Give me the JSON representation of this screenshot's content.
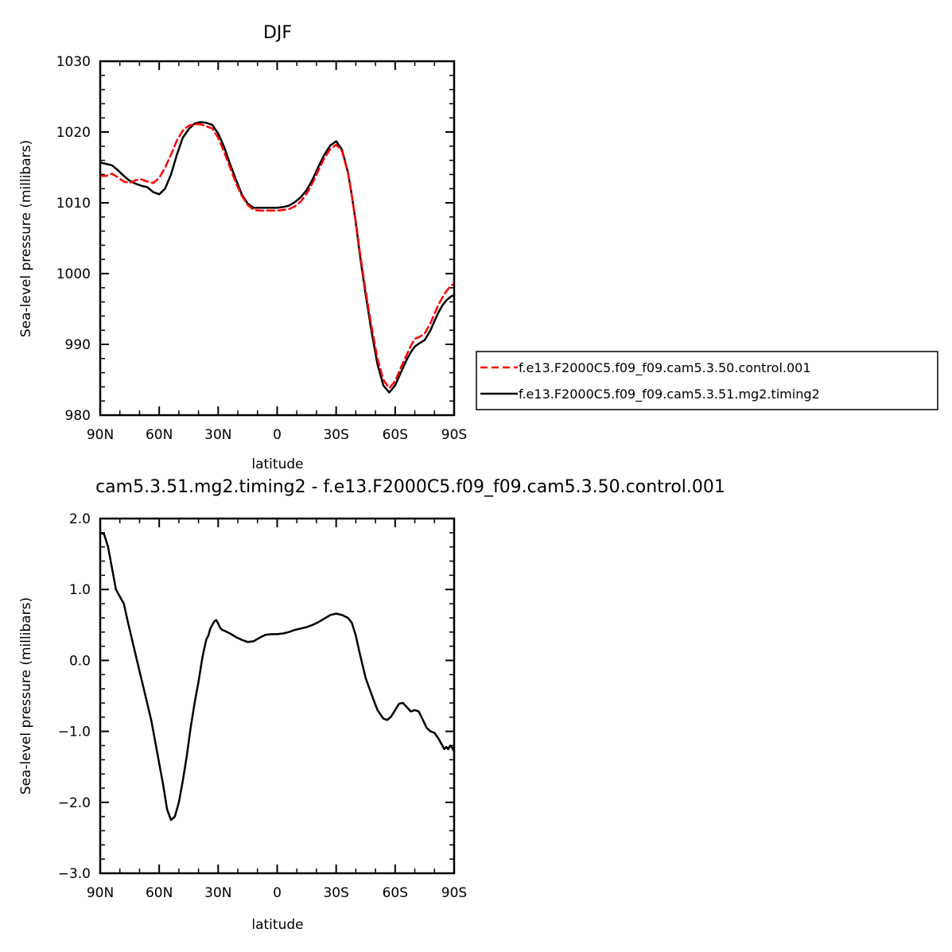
{
  "chart_data": [
    {
      "type": "line",
      "title": "DJF",
      "xlabel": "latitude",
      "ylabel": "Sea-level pressure (millibars)",
      "xlim": [
        90,
        -90
      ],
      "ylim": [
        980,
        1030
      ],
      "xticks": [
        90,
        60,
        30,
        0,
        -30,
        -60,
        -90
      ],
      "xtick_labels": [
        "90N",
        "60N",
        "30N",
        "0",
        "30S",
        "60S",
        "90S"
      ],
      "yticks": [
        980,
        990,
        1000,
        1010,
        1020,
        1030
      ],
      "ytick_labels": [
        "980",
        "990",
        "1000",
        "1010",
        "1020",
        "1030"
      ],
      "grid": false,
      "legend_position": "right",
      "series": [
        {
          "name": "f.e13.F2000C5.f09_f09.cam5.3.50.control.001",
          "color": "#ff0000",
          "style": "dashed",
          "x": [
            90,
            87,
            84,
            81,
            78,
            75,
            72,
            69,
            66,
            63,
            60,
            57,
            54,
            51,
            48,
            45,
            42,
            39,
            36,
            33,
            30,
            27,
            24,
            21,
            18,
            15,
            12,
            9,
            6,
            3,
            0,
            -3,
            -6,
            -9,
            -12,
            -15,
            -18,
            -21,
            -24,
            -27,
            -30,
            -33,
            -36,
            -38,
            -40,
            -42,
            -45,
            -48,
            -51,
            -54,
            -57,
            -60,
            -63,
            -66,
            -68,
            -70,
            -72,
            -75,
            -78,
            -80,
            -82,
            -84,
            -86,
            -88,
            -90
          ],
          "y": [
            1013.8,
            1013.8,
            1014.1,
            1013.6,
            1013.0,
            1012.8,
            1013.2,
            1013.3,
            1013.0,
            1012.8,
            1013.5,
            1015.0,
            1016.8,
            1018.8,
            1020.2,
            1020.9,
            1021.1,
            1021.1,
            1020.8,
            1020.5,
            1019.2,
            1017.2,
            1015.0,
            1012.8,
            1011.0,
            1009.7,
            1009.0,
            1008.9,
            1008.9,
            1008.9,
            1008.9,
            1009.0,
            1009.1,
            1009.5,
            1010.2,
            1011.3,
            1012.8,
            1014.6,
            1016.3,
            1017.6,
            1018.2,
            1017.3,
            1014.2,
            1011.0,
            1007.4,
            1003.2,
            997.5,
            992.5,
            988.0,
            985.0,
            983.8,
            984.8,
            986.8,
            988.6,
            989.8,
            990.8,
            991.0,
            991.5,
            993.0,
            994.3,
            995.6,
            996.6,
            997.5,
            998.2,
            998.6
          ]
        },
        {
          "name": "f.e13.F2000C5.f09_f09.cam5.3.51.mg2.timing2",
          "color": "#000000",
          "style": "solid",
          "x": [
            90,
            87,
            84,
            81,
            78,
            75,
            72,
            69,
            66,
            63,
            60,
            57,
            54,
            51,
            48,
            45,
            42,
            39,
            36,
            33,
            30,
            27,
            24,
            21,
            18,
            15,
            12,
            9,
            6,
            3,
            0,
            -3,
            -6,
            -9,
            -12,
            -15,
            -18,
            -21,
            -24,
            -27,
            -30,
            -33,
            -36,
            -38,
            -40,
            -42,
            -45,
            -48,
            -51,
            -54,
            -57,
            -60,
            -63,
            -66,
            -68,
            -70,
            -72,
            -75,
            -78,
            -80,
            -82,
            -84,
            -86,
            -88,
            -90
          ],
          "y": [
            1015.7,
            1015.5,
            1015.3,
            1014.6,
            1013.8,
            1013.1,
            1012.7,
            1012.4,
            1012.2,
            1011.5,
            1011.2,
            1012.0,
            1014.0,
            1016.8,
            1019.2,
            1020.4,
            1021.2,
            1021.4,
            1021.3,
            1021.0,
            1019.8,
            1017.9,
            1015.5,
            1013.3,
            1011.2,
            1009.9,
            1009.3,
            1009.3,
            1009.3,
            1009.3,
            1009.3,
            1009.4,
            1009.6,
            1010.1,
            1010.8,
            1011.8,
            1013.3,
            1015.1,
            1016.8,
            1018.1,
            1018.7,
            1017.5,
            1014.3,
            1011.0,
            1007.2,
            1002.8,
            997.0,
            991.8,
            987.2,
            984.2,
            983.2,
            984.2,
            986.1,
            987.9,
            988.9,
            989.7,
            990.1,
            990.6,
            992.0,
            993.3,
            994.5,
            995.5,
            996.2,
            996.7,
            997.0
          ]
        }
      ]
    },
    {
      "type": "line",
      "title": "cam5.3.51.mg2.timing2 - f.e13.F2000C5.f09_f09.cam5.3.50.control.001",
      "xlabel": "latitude",
      "ylabel": "Sea-level pressure (millibars)",
      "xlim": [
        90,
        -90
      ],
      "ylim": [
        -3.0,
        2.0
      ],
      "xticks": [
        90,
        60,
        30,
        0,
        -30,
        -60,
        -90
      ],
      "xtick_labels": [
        "90N",
        "60N",
        "30N",
        "0",
        "30S",
        "60S",
        "90S"
      ],
      "yticks": [
        -3.0,
        -2.0,
        -1.0,
        0.0,
        1.0,
        2.0
      ],
      "ytick_labels": [
        "−3.0",
        "−2.0",
        "−1.0",
        "0.0",
        "1.0",
        "2.0"
      ],
      "grid": false,
      "series": [
        {
          "color": "#000000",
          "style": "solid",
          "x": [
            90,
            88,
            86,
            84,
            82,
            80,
            78,
            76,
            73,
            70,
            67,
            64,
            61,
            58,
            56,
            54,
            52,
            50,
            48,
            46,
            44,
            42,
            40,
            38,
            36,
            35,
            34,
            33,
            32,
            31,
            30,
            29,
            28,
            27,
            24,
            21,
            18,
            15,
            12,
            9,
            6,
            3,
            0,
            -3,
            -6,
            -9,
            -12,
            -15,
            -18,
            -21,
            -24,
            -27,
            -30,
            -33,
            -36,
            -38,
            -40,
            -42,
            -45,
            -48,
            -51,
            -54,
            -56,
            -58,
            -60,
            -62,
            -64,
            -66,
            -68,
            -70,
            -72,
            -74,
            -76,
            -78,
            -80,
            -82,
            -84,
            -85,
            -86,
            -87,
            -88,
            -89,
            -90
          ],
          "y": [
            1.8,
            1.78,
            1.6,
            1.3,
            1.0,
            0.9,
            0.8,
            0.55,
            0.2,
            -0.15,
            -0.5,
            -0.85,
            -1.3,
            -1.75,
            -2.1,
            -2.25,
            -2.2,
            -2.0,
            -1.7,
            -1.35,
            -0.95,
            -0.6,
            -0.3,
            0.05,
            0.3,
            0.35,
            0.45,
            0.5,
            0.55,
            0.57,
            0.52,
            0.46,
            0.43,
            0.42,
            0.38,
            0.33,
            0.29,
            0.26,
            0.27,
            0.32,
            0.36,
            0.37,
            0.37,
            0.38,
            0.4,
            0.43,
            0.45,
            0.47,
            0.5,
            0.54,
            0.59,
            0.64,
            0.66,
            0.64,
            0.6,
            0.53,
            0.35,
            0.1,
            -0.25,
            -0.48,
            -0.7,
            -0.82,
            -0.84,
            -0.79,
            -0.7,
            -0.61,
            -0.6,
            -0.66,
            -0.72,
            -0.7,
            -0.72,
            -0.83,
            -0.95,
            -1.0,
            -1.02,
            -1.1,
            -1.2,
            -1.25,
            -1.22,
            -1.25,
            -1.2,
            -1.23,
            -1.28
          ]
        }
      ]
    }
  ]
}
